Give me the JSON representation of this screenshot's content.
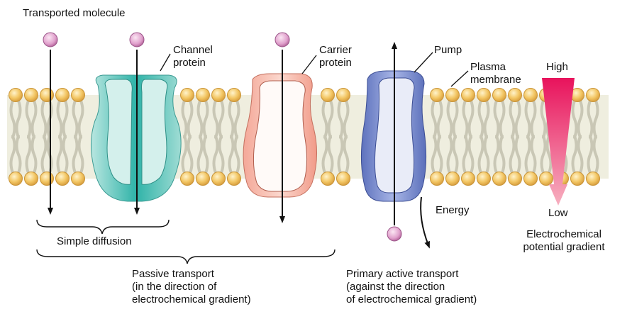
{
  "labels": {
    "transported_molecule": "Transported molecule",
    "channel_protein": [
      "Channel",
      "protein"
    ],
    "carrier_protein": [
      "Carrier",
      "protein"
    ],
    "pump": "Pump",
    "plasma_membrane": [
      "Plasma",
      "membrane"
    ],
    "high": "High",
    "low": "Low",
    "energy": "Energy",
    "simple_diffusion": "Simple diffusion",
    "passive_transport": [
      "Passive transport",
      "(in the direction of",
      "electrochemical gradient)"
    ],
    "primary_active_transport": [
      "Primary active transport",
      "(against the direction",
      "of electrochemical gradient)"
    ],
    "gradient": [
      "Electrochemical",
      "potential gradient"
    ]
  },
  "colors": {
    "lipid_head": "#f2c667",
    "lipid_head_stroke": "#c9953a",
    "lipid_tail": "#c9c7b5",
    "membrane_bg": "#ecebdc",
    "channel": "#7fd0c9",
    "carrier": "#f5b6a8",
    "pump": "#6f82c7",
    "molecule": "#e3a4cf",
    "gradient_top": "#e8135c",
    "gradient_bottom": "#f7a6b8"
  }
}
